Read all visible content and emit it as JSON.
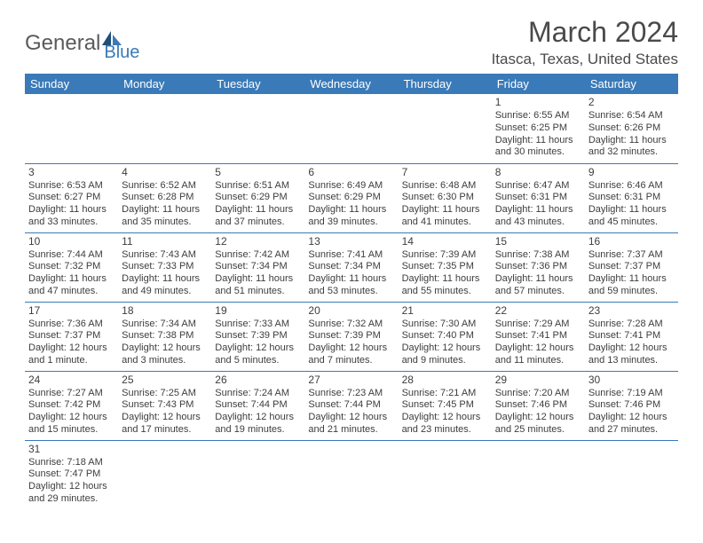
{
  "logo": {
    "text1": "General",
    "text2": "Blue"
  },
  "title": "March 2024",
  "location": "Itasca, Texas, United States",
  "colors": {
    "header_bg": "#3a7ab8",
    "header_text": "#ffffff",
    "border": "#3a7ab8",
    "body_text": "#3d3d3d"
  },
  "weekdays": [
    "Sunday",
    "Monday",
    "Tuesday",
    "Wednesday",
    "Thursday",
    "Friday",
    "Saturday"
  ],
  "grid": {
    "first_weekday_index": 5,
    "days": [
      {
        "n": 1,
        "sunrise": "6:55 AM",
        "sunset": "6:25 PM",
        "daylight": "11 hours and 30 minutes."
      },
      {
        "n": 2,
        "sunrise": "6:54 AM",
        "sunset": "6:26 PM",
        "daylight": "11 hours and 32 minutes."
      },
      {
        "n": 3,
        "sunrise": "6:53 AM",
        "sunset": "6:27 PM",
        "daylight": "11 hours and 33 minutes."
      },
      {
        "n": 4,
        "sunrise": "6:52 AM",
        "sunset": "6:28 PM",
        "daylight": "11 hours and 35 minutes."
      },
      {
        "n": 5,
        "sunrise": "6:51 AM",
        "sunset": "6:29 PM",
        "daylight": "11 hours and 37 minutes."
      },
      {
        "n": 6,
        "sunrise": "6:49 AM",
        "sunset": "6:29 PM",
        "daylight": "11 hours and 39 minutes."
      },
      {
        "n": 7,
        "sunrise": "6:48 AM",
        "sunset": "6:30 PM",
        "daylight": "11 hours and 41 minutes."
      },
      {
        "n": 8,
        "sunrise": "6:47 AM",
        "sunset": "6:31 PM",
        "daylight": "11 hours and 43 minutes."
      },
      {
        "n": 9,
        "sunrise": "6:46 AM",
        "sunset": "6:31 PM",
        "daylight": "11 hours and 45 minutes."
      },
      {
        "n": 10,
        "sunrise": "7:44 AM",
        "sunset": "7:32 PM",
        "daylight": "11 hours and 47 minutes."
      },
      {
        "n": 11,
        "sunrise": "7:43 AM",
        "sunset": "7:33 PM",
        "daylight": "11 hours and 49 minutes."
      },
      {
        "n": 12,
        "sunrise": "7:42 AM",
        "sunset": "7:34 PM",
        "daylight": "11 hours and 51 minutes."
      },
      {
        "n": 13,
        "sunrise": "7:41 AM",
        "sunset": "7:34 PM",
        "daylight": "11 hours and 53 minutes."
      },
      {
        "n": 14,
        "sunrise": "7:39 AM",
        "sunset": "7:35 PM",
        "daylight": "11 hours and 55 minutes."
      },
      {
        "n": 15,
        "sunrise": "7:38 AM",
        "sunset": "7:36 PM",
        "daylight": "11 hours and 57 minutes."
      },
      {
        "n": 16,
        "sunrise": "7:37 AM",
        "sunset": "7:37 PM",
        "daylight": "11 hours and 59 minutes."
      },
      {
        "n": 17,
        "sunrise": "7:36 AM",
        "sunset": "7:37 PM",
        "daylight": "12 hours and 1 minute."
      },
      {
        "n": 18,
        "sunrise": "7:34 AM",
        "sunset": "7:38 PM",
        "daylight": "12 hours and 3 minutes."
      },
      {
        "n": 19,
        "sunrise": "7:33 AM",
        "sunset": "7:39 PM",
        "daylight": "12 hours and 5 minutes."
      },
      {
        "n": 20,
        "sunrise": "7:32 AM",
        "sunset": "7:39 PM",
        "daylight": "12 hours and 7 minutes."
      },
      {
        "n": 21,
        "sunrise": "7:30 AM",
        "sunset": "7:40 PM",
        "daylight": "12 hours and 9 minutes."
      },
      {
        "n": 22,
        "sunrise": "7:29 AM",
        "sunset": "7:41 PM",
        "daylight": "12 hours and 11 minutes."
      },
      {
        "n": 23,
        "sunrise": "7:28 AM",
        "sunset": "7:41 PM",
        "daylight": "12 hours and 13 minutes."
      },
      {
        "n": 24,
        "sunrise": "7:27 AM",
        "sunset": "7:42 PM",
        "daylight": "12 hours and 15 minutes."
      },
      {
        "n": 25,
        "sunrise": "7:25 AM",
        "sunset": "7:43 PM",
        "daylight": "12 hours and 17 minutes."
      },
      {
        "n": 26,
        "sunrise": "7:24 AM",
        "sunset": "7:44 PM",
        "daylight": "12 hours and 19 minutes."
      },
      {
        "n": 27,
        "sunrise": "7:23 AM",
        "sunset": "7:44 PM",
        "daylight": "12 hours and 21 minutes."
      },
      {
        "n": 28,
        "sunrise": "7:21 AM",
        "sunset": "7:45 PM",
        "daylight": "12 hours and 23 minutes."
      },
      {
        "n": 29,
        "sunrise": "7:20 AM",
        "sunset": "7:46 PM",
        "daylight": "12 hours and 25 minutes."
      },
      {
        "n": 30,
        "sunrise": "7:19 AM",
        "sunset": "7:46 PM",
        "daylight": "12 hours and 27 minutes."
      },
      {
        "n": 31,
        "sunrise": "7:18 AM",
        "sunset": "7:47 PM",
        "daylight": "12 hours and 29 minutes."
      }
    ]
  },
  "labels": {
    "sunrise": "Sunrise:",
    "sunset": "Sunset:",
    "daylight": "Daylight:"
  }
}
